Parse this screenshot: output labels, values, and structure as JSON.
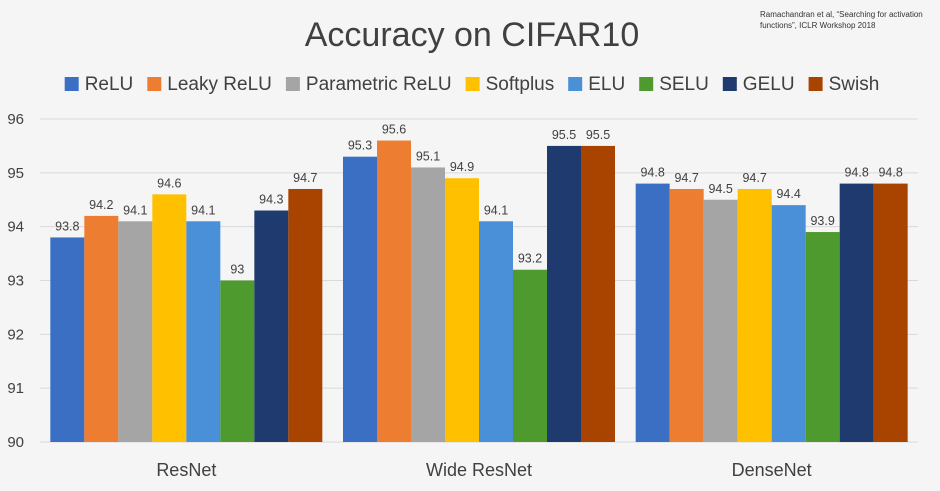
{
  "citation": "Ramachandran et al, “Searching for activation functions”, ICLR Workshop 2018",
  "chart_data": {
    "type": "bar",
    "title": "Accuracy on CIFAR10",
    "xlabel": "",
    "ylabel": "",
    "ylim": [
      90,
      96
    ],
    "yticks": [
      90,
      91,
      92,
      93,
      94,
      95,
      96
    ],
    "grid": true,
    "legend_position": "top",
    "categories": [
      "ResNet",
      "Wide ResNet",
      "DenseNet"
    ],
    "series": [
      {
        "name": "ReLU",
        "color": "#3a6fc4",
        "values": [
          93.8,
          95.3,
          94.8
        ]
      },
      {
        "name": "Leaky ReLU",
        "color": "#ed7d31",
        "values": [
          94.2,
          95.6,
          94.7
        ]
      },
      {
        "name": "Parametric ReLU",
        "color": "#a5a5a5",
        "values": [
          94.1,
          95.1,
          94.5
        ]
      },
      {
        "name": "Softplus",
        "color": "#ffc000",
        "values": [
          94.6,
          94.9,
          94.7
        ]
      },
      {
        "name": "ELU",
        "color": "#4a90d9",
        "values": [
          94.1,
          94.1,
          94.4
        ]
      },
      {
        "name": "SELU",
        "color": "#4e9a2f",
        "values": [
          93.0,
          93.2,
          93.9
        ]
      },
      {
        "name": "GELU",
        "color": "#1f3a6e",
        "values": [
          94.3,
          95.5,
          94.8
        ]
      },
      {
        "name": "Swish",
        "color": "#a94300",
        "values": [
          94.7,
          95.5,
          94.8
        ]
      }
    ],
    "data_labels": [
      [
        "93.8",
        "95.3",
        "94.8"
      ],
      [
        "94.2",
        "95.6",
        "94.7"
      ],
      [
        "94.1",
        "95.1",
        "94.5"
      ],
      [
        "94.6",
        "94.9",
        "94.7"
      ],
      [
        "94.1",
        "94.1",
        "94.4"
      ],
      [
        "93",
        "93.2",
        "93.9"
      ],
      [
        "94.3",
        "95.5",
        "94.8"
      ],
      [
        "94.7",
        "95.5",
        "94.8"
      ]
    ]
  }
}
